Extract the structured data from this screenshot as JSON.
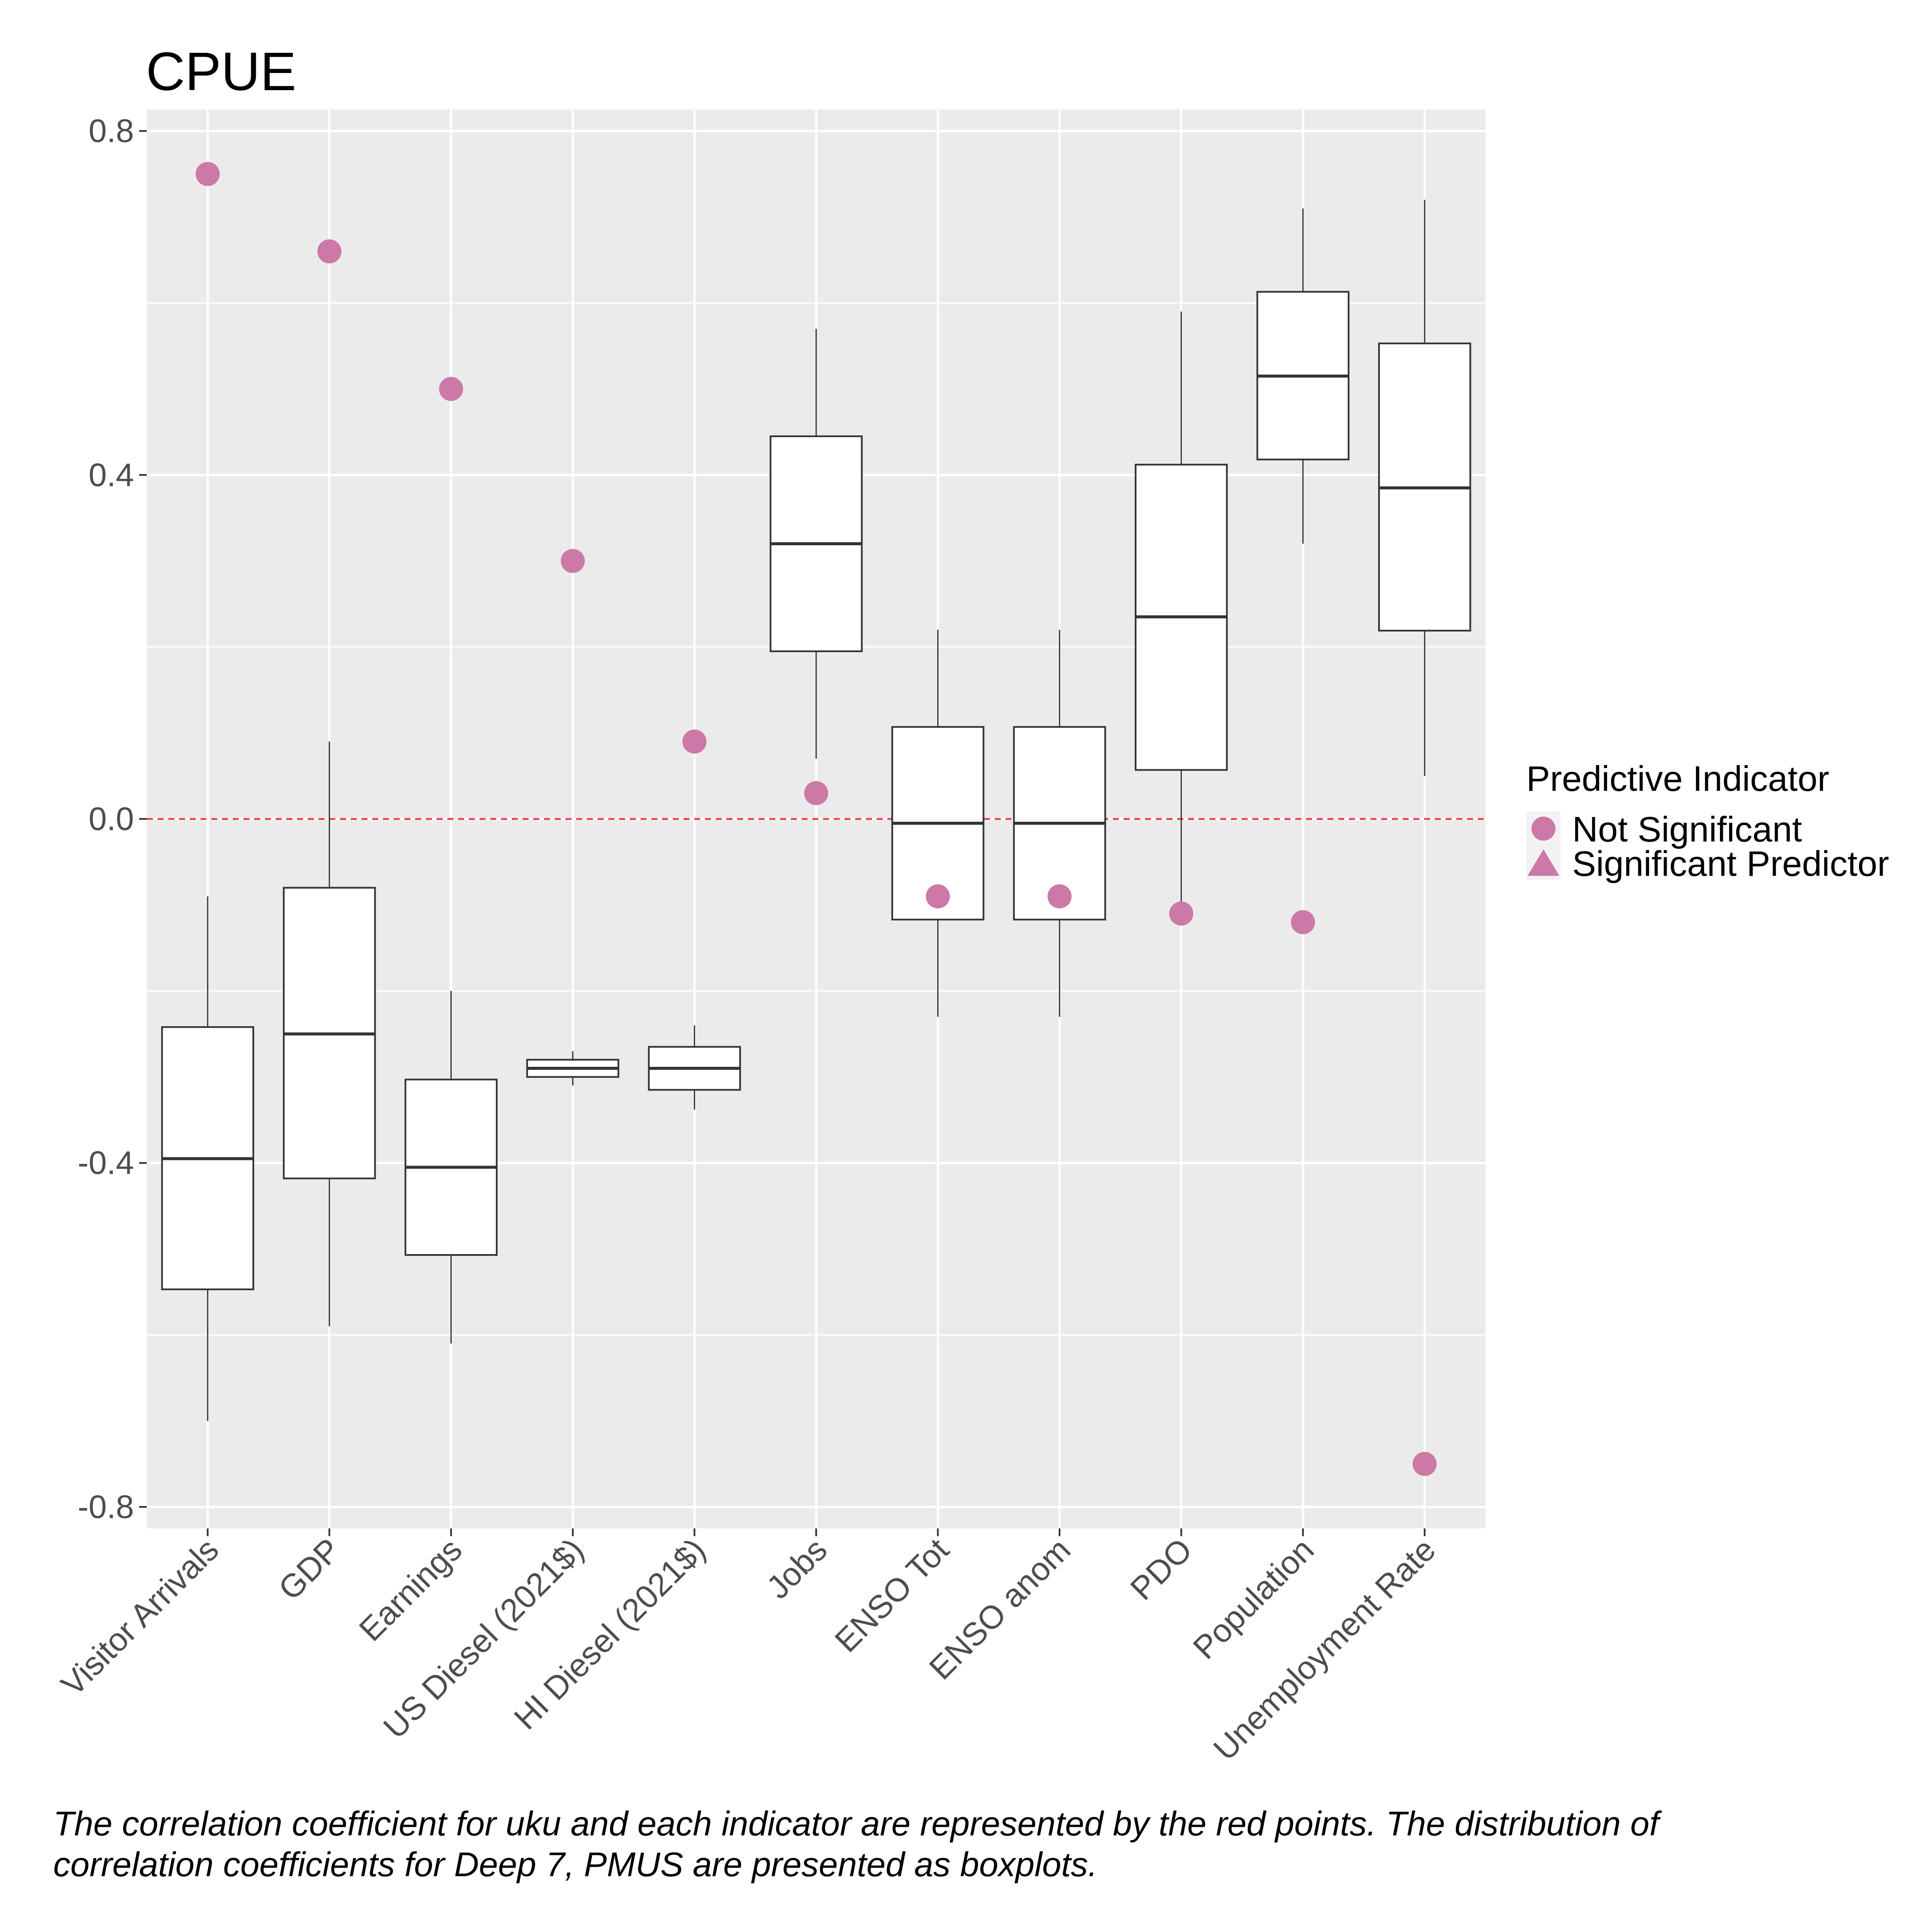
{
  "chart_data": {
    "type": "boxplot",
    "title": "CPUE",
    "xlabel": "",
    "ylabel": "",
    "ylim": [
      -0.825,
      0.825
    ],
    "yticks": [
      -0.8,
      -0.4,
      0.0,
      0.4,
      0.8
    ],
    "ytick_labels": [
      "-0.8",
      "-0.4",
      "0.0",
      "0.4",
      "0.8"
    ],
    "reference_line": {
      "y": 0.0,
      "style": "dashed",
      "color": "#e8303a"
    },
    "categories": [
      "Visitor Arrivals",
      "GDP",
      "Earnings",
      "US Diesel (2021$)",
      "HI Diesel (2021$)",
      "Jobs",
      "ENSO Tot",
      "ENSO anom",
      "PDO",
      "Population",
      "Unemployment Rate"
    ],
    "boxes": [
      {
        "whisker_low": -0.7,
        "q1": -0.547,
        "median": -0.395,
        "q3": -0.242,
        "whisker_high": -0.09
      },
      {
        "whisker_low": -0.59,
        "q1": -0.418,
        "median": -0.25,
        "q3": -0.08,
        "whisker_high": 0.09
      },
      {
        "whisker_low": -0.61,
        "q1": -0.507,
        "median": -0.405,
        "q3": -0.303,
        "whisker_high": -0.2
      },
      {
        "whisker_low": -0.31,
        "q1": -0.3,
        "median": -0.29,
        "q3": -0.28,
        "whisker_high": -0.27
      },
      {
        "whisker_low": -0.338,
        "q1": -0.315,
        "median": -0.29,
        "q3": -0.265,
        "whisker_high": -0.24
      },
      {
        "whisker_low": 0.07,
        "q1": 0.195,
        "median": 0.32,
        "q3": 0.445,
        "whisker_high": 0.57
      },
      {
        "whisker_low": -0.23,
        "q1": -0.117,
        "median": -0.005,
        "q3": 0.107,
        "whisker_high": 0.22
      },
      {
        "whisker_low": -0.23,
        "q1": -0.117,
        "median": -0.005,
        "q3": 0.107,
        "whisker_high": 0.22
      },
      {
        "whisker_low": -0.1,
        "q1": 0.057,
        "median": 0.235,
        "q3": 0.412,
        "whisker_high": 0.59
      },
      {
        "whisker_low": 0.32,
        "q1": 0.418,
        "median": 0.515,
        "q3": 0.613,
        "whisker_high": 0.71
      },
      {
        "whisker_low": 0.05,
        "q1": 0.219,
        "median": 0.385,
        "q3": 0.553,
        "whisker_high": 0.72
      }
    ],
    "points": {
      "color": "#cc79a7",
      "values": [
        0.75,
        0.66,
        0.5,
        0.3,
        0.09,
        0.03,
        -0.09,
        -0.09,
        -0.11,
        -0.12,
        -0.75
      ],
      "groups": [
        "Not Significant",
        "Not Significant",
        "Not Significant",
        "Not Significant",
        "Not Significant",
        "Not Significant",
        "Not Significant",
        "Not Significant",
        "Not Significant",
        "Not Significant",
        "Not Significant"
      ]
    },
    "grid": true,
    "legend": {
      "title": "Predictive Indicator",
      "position": "right",
      "items": [
        {
          "label": "Not Significant",
          "shape": "circle"
        },
        {
          "label": "Significant Predictor",
          "shape": "triangle"
        }
      ]
    }
  },
  "caption": "The correlation coefficient for uku and each indicator are represented by the red points. The distribution of\n correlation coefficients for Deep 7, PMUS are presented as boxplots."
}
